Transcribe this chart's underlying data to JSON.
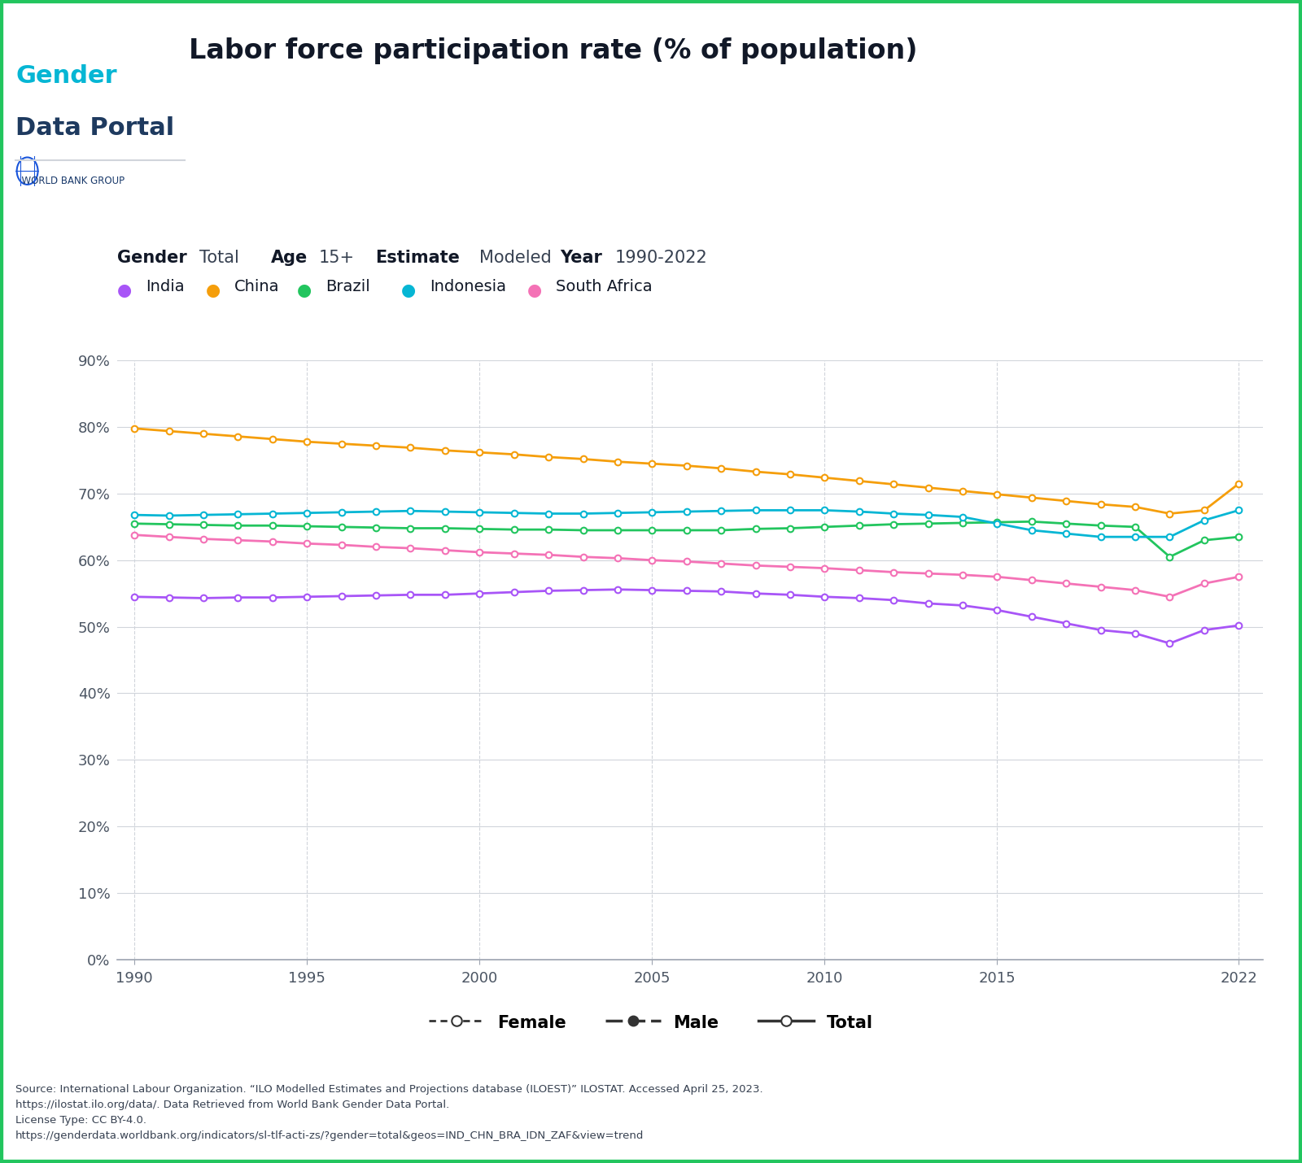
{
  "title": "Labor force participation rate (% of population)",
  "subtitle_gender": "Gender",
  "subtitle_gender_val": "Total",
  "subtitle_age": "Age",
  "subtitle_age_val": "15+",
  "subtitle_estimate": "Estimate",
  "subtitle_estimate_val": "Modeled",
  "subtitle_year": "Year",
  "subtitle_year_val": "1990-2022",
  "countries": [
    "India",
    "China",
    "Brazil",
    "Indonesia",
    "South Africa"
  ],
  "colors": {
    "India": "#a855f7",
    "China": "#f59e0b",
    "Brazil": "#22c55e",
    "Indonesia": "#06b6d4",
    "South Africa": "#f472b6"
  },
  "years": [
    1990,
    1991,
    1992,
    1993,
    1994,
    1995,
    1996,
    1997,
    1998,
    1999,
    2000,
    2001,
    2002,
    2003,
    2004,
    2005,
    2006,
    2007,
    2008,
    2009,
    2010,
    2011,
    2012,
    2013,
    2014,
    2015,
    2016,
    2017,
    2018,
    2019,
    2020,
    2021,
    2022
  ],
  "data": {
    "India": [
      54.5,
      54.4,
      54.3,
      54.4,
      54.4,
      54.5,
      54.6,
      54.7,
      54.8,
      54.8,
      55.0,
      55.2,
      55.4,
      55.5,
      55.6,
      55.5,
      55.4,
      55.3,
      55.0,
      54.8,
      54.5,
      54.3,
      54.0,
      53.5,
      53.2,
      52.5,
      51.5,
      50.5,
      49.5,
      49.0,
      47.5,
      49.5,
      50.2
    ],
    "China": [
      79.8,
      79.4,
      79.0,
      78.6,
      78.2,
      77.8,
      77.5,
      77.2,
      76.9,
      76.5,
      76.2,
      75.9,
      75.5,
      75.2,
      74.8,
      74.5,
      74.2,
      73.8,
      73.3,
      72.9,
      72.4,
      71.9,
      71.4,
      70.9,
      70.4,
      69.9,
      69.4,
      68.9,
      68.4,
      68.0,
      67.0,
      67.5,
      71.5
    ],
    "Brazil": [
      65.5,
      65.4,
      65.3,
      65.2,
      65.2,
      65.1,
      65.0,
      64.9,
      64.8,
      64.8,
      64.7,
      64.6,
      64.6,
      64.5,
      64.5,
      64.5,
      64.5,
      64.5,
      64.7,
      64.8,
      65.0,
      65.2,
      65.4,
      65.5,
      65.6,
      65.7,
      65.8,
      65.5,
      65.2,
      65.0,
      60.5,
      63.0,
      63.5
    ],
    "Indonesia": [
      66.8,
      66.7,
      66.8,
      66.9,
      67.0,
      67.1,
      67.2,
      67.3,
      67.4,
      67.3,
      67.2,
      67.1,
      67.0,
      67.0,
      67.1,
      67.2,
      67.3,
      67.4,
      67.5,
      67.5,
      67.5,
      67.3,
      67.0,
      66.8,
      66.5,
      65.5,
      64.5,
      64.0,
      63.5,
      63.5,
      63.5,
      66.0,
      67.5
    ],
    "South Africa": [
      63.8,
      63.5,
      63.2,
      63.0,
      62.8,
      62.5,
      62.3,
      62.0,
      61.8,
      61.5,
      61.2,
      61.0,
      60.8,
      60.5,
      60.3,
      60.0,
      59.8,
      59.5,
      59.2,
      59.0,
      58.8,
      58.5,
      58.2,
      58.0,
      57.8,
      57.5,
      57.0,
      56.5,
      56.0,
      55.5,
      54.5,
      56.5,
      57.5
    ]
  },
  "source_text": "Source: International Labour Organization. “ILO Modelled Estimates and Projections database (ILOEST)” ILOSTAT. Accessed April 25, 2023.\nhttps://ilostat.ilo.org/data/. Data Retrieved from World Bank Gender Data Portal.\nLicense Type: CC BY-4.0.\nhttps://genderdata.worldbank.org/indicators/sl-tlf-acti-zs/?gender=total&geos=IND_CHN_BRA_IDN_ZAF&view=trend",
  "border_color": "#22c55e",
  "background_color": "#ffffff",
  "grid_color": "#d1d5db",
  "tick_color": "#4b5563"
}
